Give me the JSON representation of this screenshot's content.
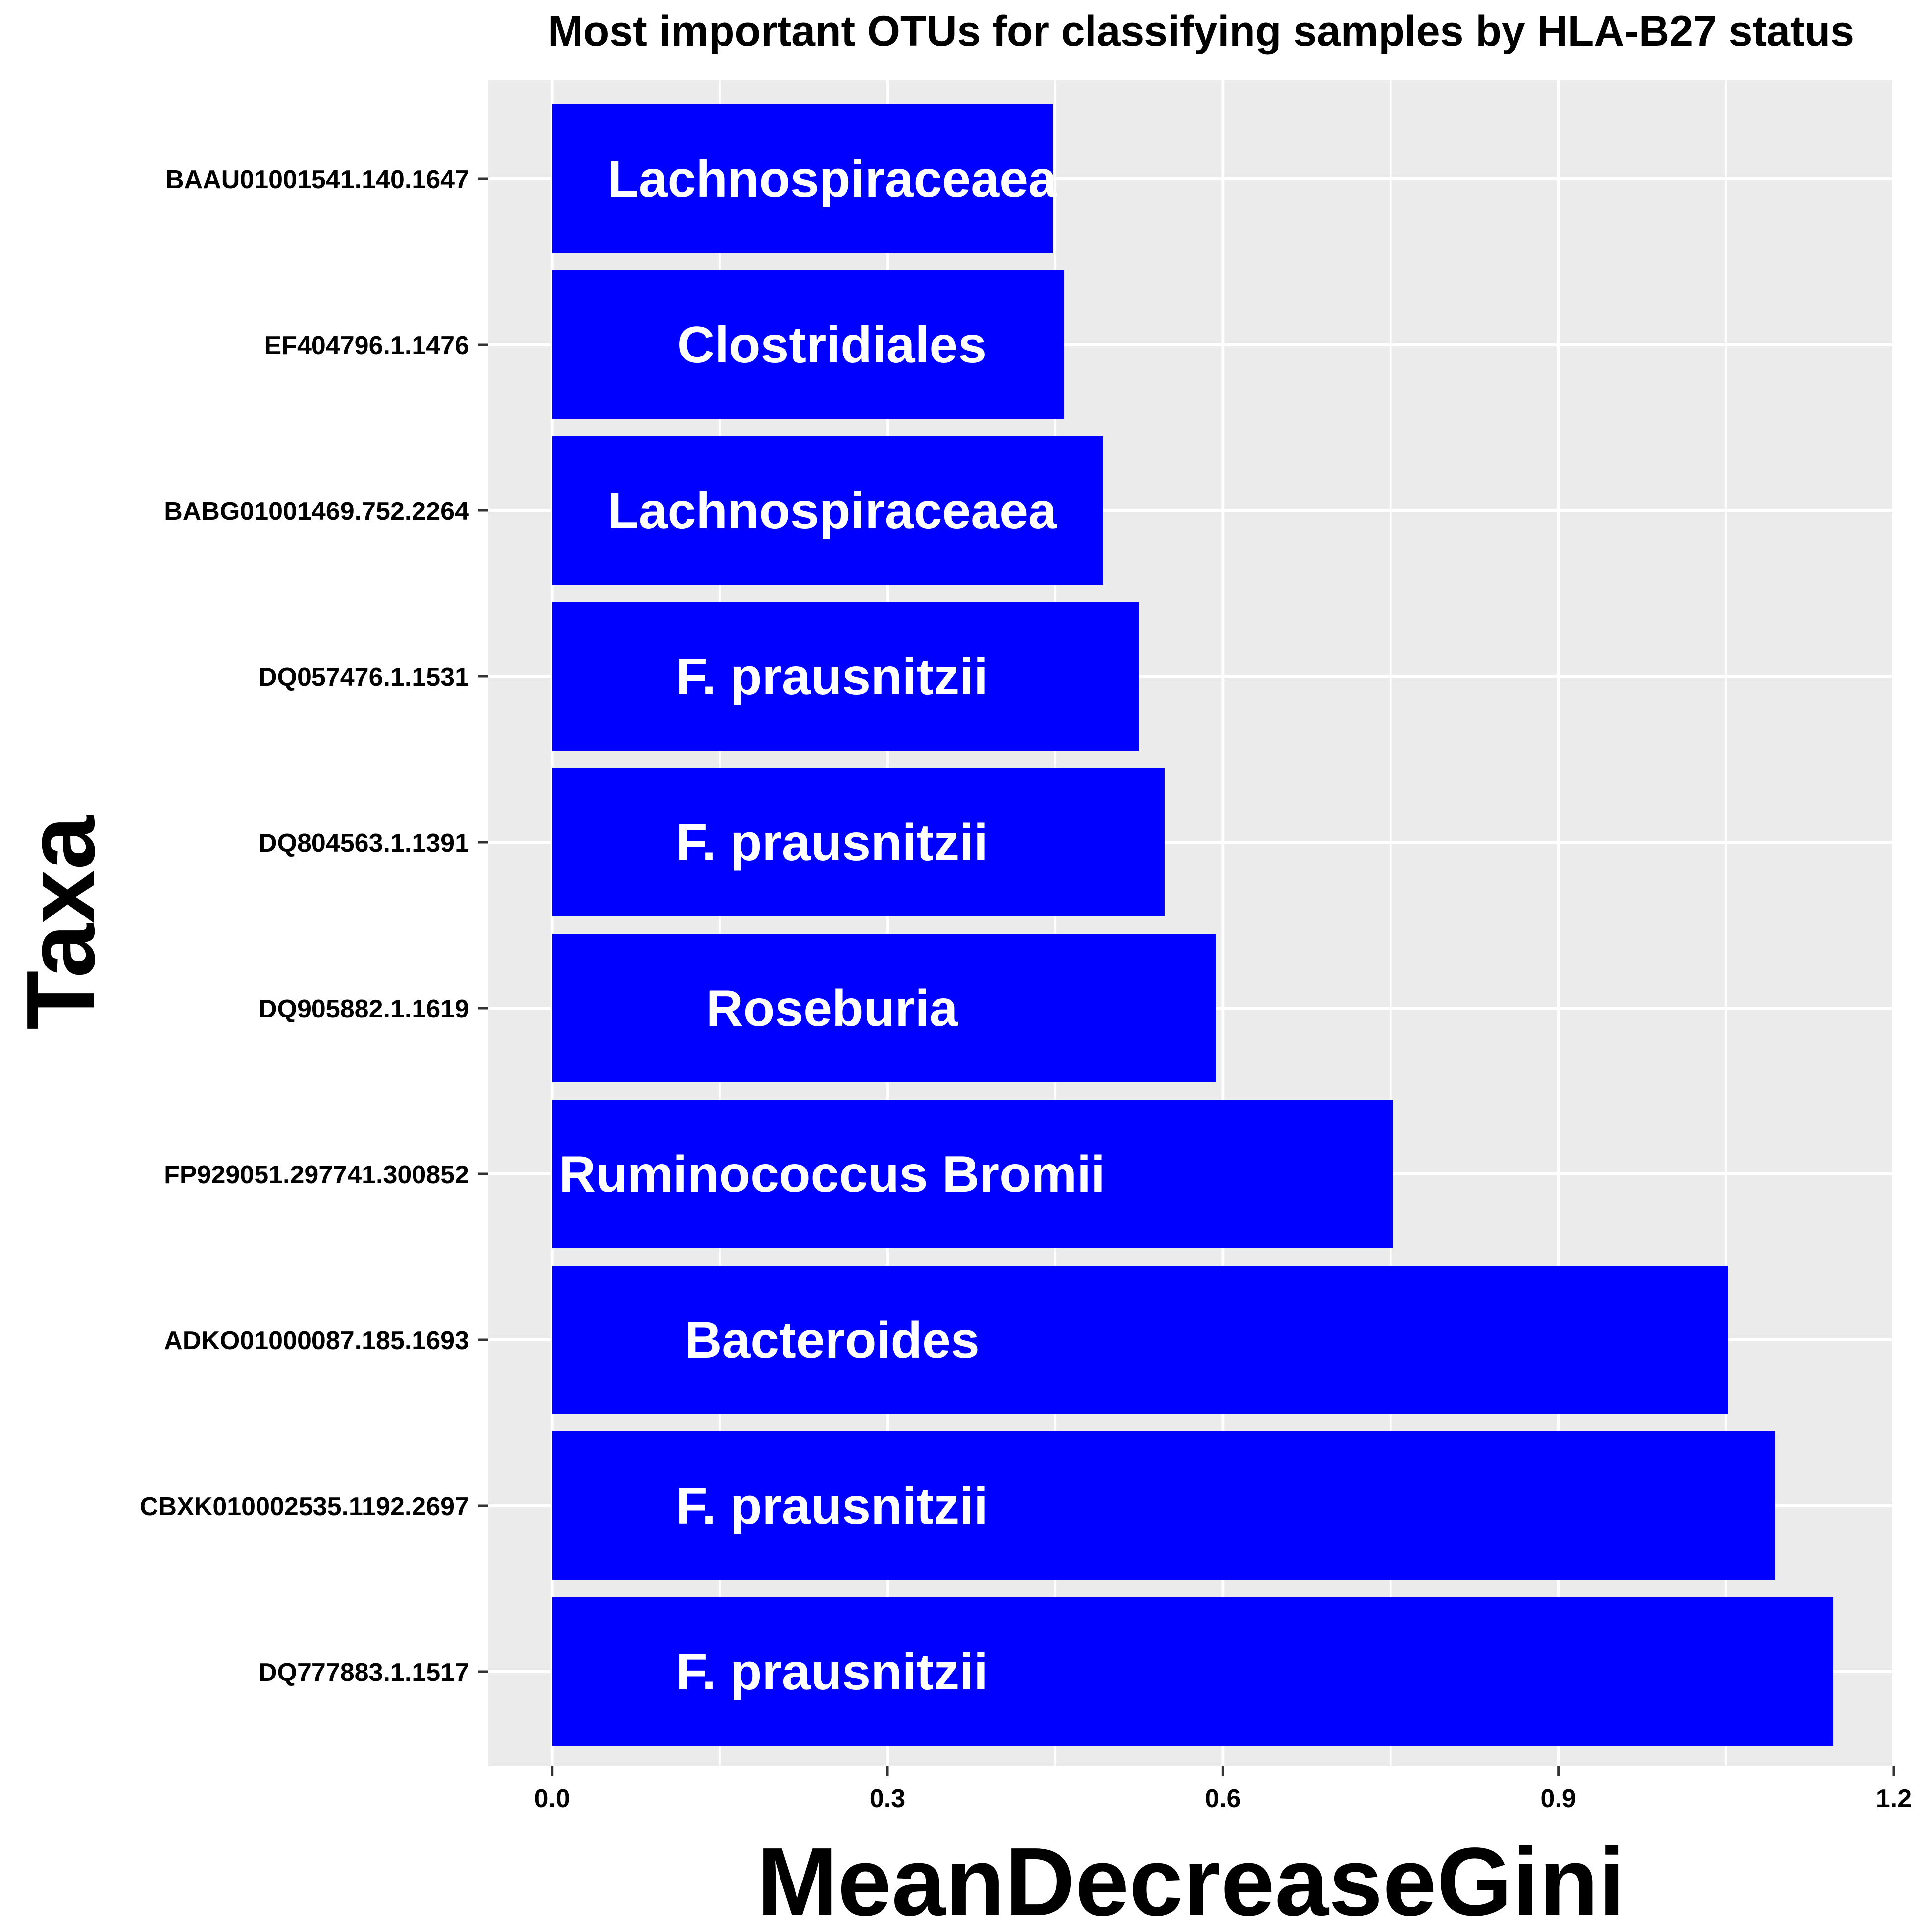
{
  "chart_data": {
    "type": "bar",
    "orientation": "horizontal",
    "title": "Most important OTUs for classifying samples by HLA-B27 status",
    "xlabel": "MeanDecreaseGini",
    "ylabel": "Taxa",
    "xlim": [
      -0.057,
      1.2
    ],
    "xticks": [
      0.0,
      0.3,
      0.6,
      0.9,
      1.2
    ],
    "xtick_labels": [
      "0.0",
      "0.3",
      "0.6",
      "0.9",
      "1.2"
    ],
    "grid": true,
    "bar_color": "#0000ff",
    "panel_color": "#ebebeb",
    "gridline_color": "#ffffff",
    "categories": [
      "BAAU01001541.140.1647",
      "EF404796.1.1476",
      "BABG01001469.752.2264",
      "DQ057476.1.1531",
      "DQ804563.1.1391",
      "DQ905882.1.1619",
      "FP929051.297741.300852",
      "ADKO01000087.185.1693",
      "CBXK010002535.1192.2697",
      "DQ777883.1.1517"
    ],
    "values": [
      0.448,
      0.458,
      0.493,
      0.525,
      0.548,
      0.594,
      0.752,
      1.052,
      1.094,
      1.146
    ],
    "bar_labels": [
      "Lachnospiraceaea",
      "Clostridiales",
      "Lachnospiraceaea",
      "F. prausnitzii",
      "F. prausnitzii",
      "Roseburia",
      "Ruminococcus Bromii",
      "Bacteroides",
      "F. prausnitzii",
      "F. prausnitzii"
    ]
  }
}
